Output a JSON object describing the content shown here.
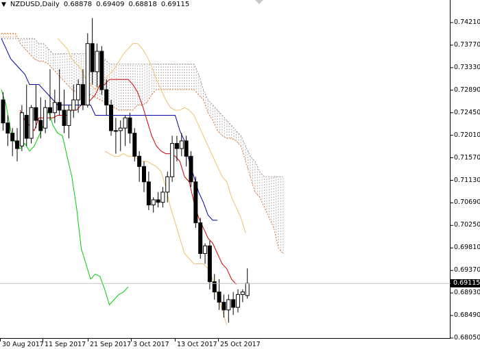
{
  "header": {
    "menu_icon": "triangle-down-icon",
    "symbol": "NZDUSD,Daily",
    "open": "0.68878",
    "high": "0.69409",
    "low": "0.68818",
    "close": "0.69115"
  },
  "price_tag": "0.69115",
  "y_axis": [
    "0.74210",
    "0.73770",
    "0.73330",
    "0.72890",
    "0.72450",
    "0.72010",
    "0.71570",
    "0.71130",
    "0.70690",
    "0.70250",
    "0.69810",
    "0.69370",
    "0.68930",
    "0.68490",
    "0.68050"
  ],
  "x_axis": [
    "30 Aug 2017",
    "11 Sep 2017",
    "21 Sep 2017",
    "3 Oct 2017",
    "13 Oct 2017",
    "25 Oct 2017"
  ],
  "colors": {
    "tenkan": "#cc0000",
    "kijun": "#0000aa",
    "chikou": "#00cc00",
    "kumo": "#e07830",
    "kumo_b": "#a09090",
    "envelope": "#f0c070",
    "grid": "#c0c0c0"
  },
  "chart_data": {
    "type": "candlestick",
    "symbol": "NZDUSD",
    "timeframe": "Daily",
    "ylim": [
      0.6805,
      0.7445
    ],
    "candles": [
      [
        0.727,
        0.7285,
        0.721,
        0.7225
      ],
      [
        0.7225,
        0.724,
        0.718,
        0.7205
      ],
      [
        0.7205,
        0.7215,
        0.716,
        0.719
      ],
      [
        0.719,
        0.7215,
        0.715,
        0.7175
      ],
      [
        0.718,
        0.726,
        0.717,
        0.7245
      ],
      [
        0.724,
        0.73,
        0.718,
        0.7195
      ],
      [
        0.7195,
        0.726,
        0.7185,
        0.7255
      ],
      [
        0.7255,
        0.73,
        0.7215,
        0.723
      ],
      [
        0.723,
        0.7275,
        0.7195,
        0.721
      ],
      [
        0.7215,
        0.727,
        0.7205,
        0.7255
      ],
      [
        0.7255,
        0.733,
        0.723,
        0.7245
      ],
      [
        0.7245,
        0.729,
        0.7225,
        0.7265
      ],
      [
        0.7265,
        0.733,
        0.724,
        0.725
      ],
      [
        0.725,
        0.729,
        0.7205,
        0.722
      ],
      [
        0.722,
        0.726,
        0.7195,
        0.725
      ],
      [
        0.725,
        0.73,
        0.7235,
        0.727
      ],
      [
        0.727,
        0.731,
        0.7245,
        0.73
      ],
      [
        0.73,
        0.733,
        0.725,
        0.726
      ],
      [
        0.726,
        0.74,
        0.7255,
        0.738
      ],
      [
        0.738,
        0.743,
        0.73,
        0.7325
      ],
      [
        0.7325,
        0.738,
        0.7295,
        0.7365
      ],
      [
        0.7365,
        0.7375,
        0.728,
        0.729
      ],
      [
        0.729,
        0.731,
        0.724,
        0.726
      ],
      [
        0.726,
        0.727,
        0.72,
        0.721
      ],
      [
        0.721,
        0.7235,
        0.7165,
        0.721
      ],
      [
        0.721,
        0.723,
        0.717,
        0.7215
      ],
      [
        0.7215,
        0.724,
        0.718,
        0.7235
      ],
      [
        0.7235,
        0.7245,
        0.7185,
        0.7205
      ],
      [
        0.7205,
        0.7215,
        0.715,
        0.716
      ],
      [
        0.716,
        0.717,
        0.711,
        0.714
      ],
      [
        0.714,
        0.715,
        0.709,
        0.711
      ],
      [
        0.711,
        0.713,
        0.7055,
        0.7065
      ],
      [
        0.7065,
        0.708,
        0.705,
        0.7075
      ],
      [
        0.7075,
        0.709,
        0.706,
        0.707
      ],
      [
        0.707,
        0.71,
        0.706,
        0.709
      ],
      [
        0.709,
        0.713,
        0.707,
        0.712
      ],
      [
        0.712,
        0.72,
        0.711,
        0.7185
      ],
      [
        0.7185,
        0.72,
        0.715,
        0.7175
      ],
      [
        0.7175,
        0.7205,
        0.716,
        0.719
      ],
      [
        0.719,
        0.72,
        0.714,
        0.716
      ],
      [
        0.716,
        0.717,
        0.71,
        0.711
      ],
      [
        0.711,
        0.712,
        0.702,
        0.703
      ],
      [
        0.703,
        0.704,
        0.696,
        0.697
      ],
      [
        0.697,
        0.699,
        0.695,
        0.6985
      ],
      [
        0.6985,
        0.6995,
        0.69,
        0.6915
      ],
      [
        0.6915,
        0.693,
        0.688,
        0.6895
      ],
      [
        0.6895,
        0.692,
        0.686,
        0.6875
      ],
      [
        0.6875,
        0.689,
        0.6845,
        0.686
      ],
      [
        0.686,
        0.689,
        0.6835,
        0.688
      ],
      [
        0.688,
        0.6895,
        0.685,
        0.6865
      ],
      [
        0.6865,
        0.69,
        0.6855,
        0.689
      ],
      [
        0.689,
        0.69,
        0.6875,
        0.6895
      ],
      [
        0.6888,
        0.6941,
        0.6882,
        0.6912
      ]
    ],
    "tenkan": [
      0.725,
      0.723,
      0.722,
      0.721,
      0.7235,
      0.7235,
      0.7235,
      0.7235,
      0.724,
      0.724,
      0.724,
      0.725,
      0.725,
      0.726,
      0.726,
      0.727,
      0.728,
      0.73,
      0.73,
      0.731,
      0.731,
      0.731,
      0.731,
      0.731,
      0.73,
      0.7285,
      0.726,
      0.723,
      0.72,
      0.718,
      0.717,
      0.7165,
      0.7165,
      0.716,
      0.715,
      0.712,
      0.711,
      0.707,
      0.704,
      0.702,
      0.7,
      0.699,
      0.697,
      0.695,
      0.694,
      0.692,
      0.691
    ],
    "kijun": [
      0.739,
      0.737,
      0.735,
      0.734,
      0.733,
      0.732,
      0.73,
      0.73,
      0.73,
      0.729,
      0.728,
      0.727,
      0.726,
      0.726,
      0.726,
      0.726,
      0.726,
      0.726,
      0.726,
      0.726,
      0.724,
      0.724,
      0.724,
      0.724,
      0.724,
      0.724,
      0.724,
      0.724,
      0.724,
      0.724,
      0.724,
      0.724,
      0.724,
      0.724,
      0.724,
      0.724,
      0.724,
      0.724,
      0.721,
      0.719,
      0.715,
      0.712,
      0.709,
      0.707,
      0.7045,
      0.7035,
      0.7035
    ],
    "chikou": [
      0.729,
      0.726,
      0.721,
      0.7185,
      0.7175,
      0.7185,
      0.717,
      0.718,
      0.72,
      0.722,
      0.725,
      0.722,
      0.7205,
      0.72,
      0.716,
      0.712,
      0.706,
      0.698,
      0.695,
      0.692,
      0.693,
      0.6925,
      0.69,
      0.687,
      0.688,
      0.689,
      0.6895,
      0.6905
    ],
    "kumo_a": [
      0.74,
      0.74,
      0.74,
      0.74,
      0.738,
      0.737,
      0.736,
      0.735,
      0.7345,
      0.7345,
      0.734,
      0.733,
      0.732,
      0.731,
      0.73,
      0.729,
      0.7285,
      0.728,
      0.728,
      0.728,
      0.7275,
      0.727,
      0.7265,
      0.726,
      0.7255,
      0.725,
      0.725,
      0.725,
      0.725,
      0.726,
      0.726,
      0.7265,
      0.728,
      0.729,
      0.729,
      0.729,
      0.729,
      0.729,
      0.729,
      0.729,
      0.729,
      0.729,
      0.728,
      0.727,
      0.7245,
      0.723,
      0.721,
      0.72,
      0.7195,
      0.7195,
      0.719,
      0.718,
      0.715,
      0.712,
      0.709,
      0.708,
      0.706,
      0.704,
      0.702,
      0.698,
      0.697
    ],
    "kumo_b": [
      0.739,
      0.739,
      0.739,
      0.739,
      0.739,
      0.739,
      0.739,
      0.739,
      0.738,
      0.738,
      0.737,
      0.736,
      0.736,
      0.736,
      0.736,
      0.736,
      0.736,
      0.736,
      0.736,
      0.736,
      0.736,
      0.736,
      0.735,
      0.734,
      0.734,
      0.734,
      0.734,
      0.734,
      0.734,
      0.734,
      0.734,
      0.734,
      0.734,
      0.734,
      0.734,
      0.734,
      0.734,
      0.734,
      0.734,
      0.734,
      0.734,
      0.734,
      0.732,
      0.729,
      0.727,
      0.726,
      0.725,
      0.724,
      0.723,
      0.722,
      0.721,
      0.72,
      0.718,
      0.716,
      0.715,
      0.713,
      0.712,
      0.712,
      0.712,
      0.712,
      0.712
    ],
    "envelope_upper": [
      0.739,
      0.738,
      0.737,
      0.735,
      0.734,
      0.733,
      0.731,
      0.73,
      0.729,
      0.73,
      0.731,
      0.732,
      0.733,
      0.7345,
      0.736,
      0.737,
      0.738,
      0.738,
      0.737,
      0.7355,
      0.7335,
      0.731,
      0.729,
      0.727,
      0.7255,
      0.725,
      0.725,
      0.7255,
      0.725,
      0.724,
      0.722,
      0.72,
      0.718,
      0.716,
      0.714,
      0.712,
      0.711,
      0.708,
      0.706,
      0.704,
      0.701
    ],
    "envelope_lower": [
      0.717,
      0.7165,
      0.716,
      0.716,
      0.7165,
      0.716,
      0.716,
      0.7155,
      0.715,
      0.715,
      0.7145,
      0.714,
      0.713,
      0.71,
      0.706,
      0.703,
      0.7,
      0.697,
      0.696,
      0.695,
      0.695,
      0.695,
      0.694,
      0.692,
      0.689,
      0.686,
      0.683
    ],
    "title": "NZDUSD,Daily",
    "x_ticks": [
      "30 Aug 2017",
      "11 Sep 2017",
      "21 Sep 2017",
      "3 Oct 2017",
      "13 Oct 2017",
      "25 Oct 2017"
    ],
    "y_ticks": [
      "0.74210",
      "0.73770",
      "0.73330",
      "0.72890",
      "0.72450",
      "0.72010",
      "0.71570",
      "0.71130",
      "0.70690",
      "0.70250",
      "0.69810",
      "0.69370",
      "0.68930",
      "0.68490",
      "0.68050"
    ],
    "current_price": 0.69115
  }
}
